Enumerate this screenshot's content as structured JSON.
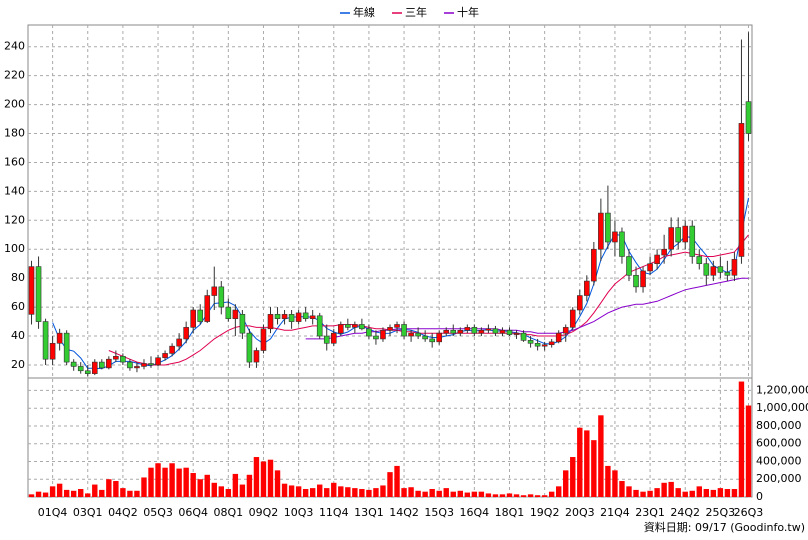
{
  "chart_data": [
    {
      "type": "candlestick",
      "categories": [
        null,
        null,
        null,
        "01Q4",
        null,
        null,
        null,
        null,
        "03Q1",
        null,
        null,
        null,
        null,
        "04Q2",
        null,
        null,
        null,
        null,
        "05Q3",
        null,
        null,
        null,
        null,
        "06Q4",
        null,
        null,
        null,
        null,
        "08Q1",
        null,
        null,
        null,
        null,
        "09Q2",
        null,
        null,
        null,
        null,
        "10Q3",
        null,
        null,
        null,
        null,
        "11Q4",
        null,
        null,
        null,
        null,
        "13Q1",
        null,
        null,
        null,
        null,
        "14Q2",
        null,
        null,
        null,
        null,
        "15Q3",
        null,
        null,
        null,
        null,
        "16Q4",
        null,
        null,
        null,
        null,
        "18Q1",
        null,
        null,
        null,
        null,
        "19Q2",
        null,
        null,
        null,
        null,
        "20Q3",
        null,
        null,
        null,
        null,
        "21Q4",
        null,
        null,
        null,
        null,
        "23Q1",
        null,
        null,
        null,
        null,
        "24Q2",
        null,
        null,
        null,
        null,
        "25Q3",
        null,
        null,
        null,
        "26Q3"
      ],
      "open": [
        55,
        88,
        50,
        24,
        35,
        42,
        22,
        19,
        16,
        14,
        22,
        18,
        24,
        26,
        22,
        18,
        19,
        21,
        20,
        25,
        28,
        33,
        38,
        46,
        58,
        50,
        68,
        74,
        60,
        52,
        55,
        42,
        22,
        30,
        45,
        55,
        52,
        55,
        50,
        56,
        52,
        54,
        40,
        35,
        42,
        48,
        46,
        48,
        45,
        40,
        38,
        44,
        46,
        48,
        40,
        42,
        40,
        38,
        36,
        42,
        44,
        42,
        44,
        46,
        42,
        44,
        45,
        42,
        44,
        41,
        42,
        37,
        35,
        33,
        34,
        36,
        42,
        46,
        58,
        68,
        78,
        100,
        125,
        105,
        112,
        95,
        82,
        74,
        85,
        90,
        96,
        100,
        115,
        105,
        116,
        95,
        90,
        82,
        88,
        84,
        82,
        95,
        202
      ],
      "high": [
        92,
        95,
        52,
        40,
        45,
        44,
        24,
        22,
        20,
        24,
        24,
        26,
        30,
        28,
        24,
        22,
        24,
        26,
        27,
        30,
        35,
        42,
        50,
        60,
        62,
        72,
        88,
        78,
        66,
        62,
        58,
        45,
        32,
        48,
        60,
        60,
        58,
        58,
        58,
        60,
        58,
        56,
        48,
        45,
        50,
        52,
        50,
        52,
        48,
        44,
        46,
        48,
        50,
        50,
        44,
        46,
        44,
        42,
        44,
        46,
        48,
        46,
        48,
        48,
        46,
        48,
        47,
        46,
        46,
        44,
        44,
        40,
        38,
        36,
        38,
        44,
        48,
        60,
        72,
        82,
        105,
        135,
        144,
        120,
        115,
        100,
        88,
        88,
        95,
        100,
        110,
        122,
        122,
        120,
        120,
        100,
        94,
        92,
        95,
        92,
        98,
        245,
        250
      ],
      "low": [
        48,
        45,
        20,
        20,
        30,
        20,
        16,
        14,
        12,
        13,
        17,
        17,
        22,
        20,
        16,
        15,
        17,
        18,
        19,
        23,
        26,
        30,
        35,
        42,
        48,
        49,
        58,
        55,
        50,
        40,
        38,
        18,
        18,
        28,
        42,
        48,
        48,
        45,
        48,
        50,
        48,
        38,
        30,
        33,
        40,
        44,
        42,
        44,
        38,
        34,
        36,
        40,
        42,
        38,
        36,
        38,
        36,
        32,
        34,
        40,
        40,
        40,
        42,
        40,
        40,
        42,
        40,
        40,
        40,
        38,
        36,
        32,
        30,
        30,
        32,
        35,
        36,
        44,
        55,
        64,
        75,
        92,
        100,
        95,
        90,
        78,
        70,
        70,
        82,
        86,
        90,
        95,
        100,
        100,
        90,
        86,
        75,
        78,
        80,
        78,
        78,
        90,
        175
      ],
      "close": [
        88,
        50,
        24,
        35,
        42,
        22,
        19,
        16,
        14,
        22,
        18,
        24,
        26,
        22,
        18,
        19,
        21,
        20,
        25,
        28,
        33,
        38,
        46,
        58,
        50,
        68,
        74,
        60,
        52,
        58,
        42,
        22,
        30,
        45,
        55,
        52,
        55,
        50,
        56,
        52,
        54,
        40,
        35,
        42,
        48,
        46,
        48,
        45,
        40,
        38,
        44,
        46,
        48,
        40,
        42,
        40,
        38,
        36,
        42,
        44,
        42,
        44,
        46,
        42,
        44,
        45,
        42,
        44,
        41,
        42,
        37,
        35,
        33,
        34,
        36,
        42,
        46,
        58,
        68,
        78,
        100,
        125,
        105,
        112,
        95,
        82,
        74,
        85,
        90,
        96,
        100,
        115,
        105,
        116,
        95,
        90,
        82,
        88,
        84,
        82,
        93,
        187,
        180
      ],
      "up_color": "#ff0000",
      "down_color": "#33cc33",
      "series": [
        {
          "name": "年線",
          "color": "#0055dd",
          "values": [
            null,
            null,
            null,
            49.3,
            37.8,
            30.8,
            29.5,
            24.8,
            17.8,
            17.8,
            17.5,
            19.5,
            22.5,
            22.5,
            22.5,
            21.3,
            20,
            19.5,
            21.3,
            23.5,
            26.5,
            31,
            36.3,
            43.8,
            48,
            55.5,
            62.5,
            63,
            63.5,
            61,
            53,
            43.5,
            38,
            34.8,
            38,
            45.5,
            51.8,
            53,
            53.3,
            53.3,
            53,
            50.5,
            45.3,
            42.8,
            41.3,
            42.8,
            46,
            46.8,
            44.8,
            42.8,
            41.8,
            42,
            44,
            44.5,
            44,
            42.5,
            40,
            39,
            39,
            40,
            41,
            43,
            44,
            43.5,
            44,
            44.3,
            43.3,
            43.8,
            43,
            42.3,
            41,
            38.8,
            36.8,
            34.8,
            34.5,
            36.3,
            39.5,
            45.5,
            53.5,
            62.5,
            76,
            92.8,
            102,
            110.5,
            109.3,
            98.5,
            90.8,
            84,
            82.8,
            86.3,
            92.8,
            100.3,
            104,
            109,
            107.8,
            101.5,
            95.8,
            88.8,
            86,
            84,
            86.8,
            111.5,
            135.5
          ]
        },
        {
          "name": "三年",
          "color": "#e00050",
          "values": [
            null,
            null,
            null,
            null,
            null,
            null,
            null,
            null,
            null,
            null,
            null,
            30,
            28,
            26,
            24,
            22,
            21,
            20,
            20,
            20,
            21,
            22,
            24,
            27,
            30,
            34,
            38,
            41,
            44,
            46,
            47,
            47,
            46,
            46,
            46,
            45,
            44,
            44,
            45,
            46,
            47,
            47,
            47,
            47,
            48,
            48,
            48,
            47,
            46,
            45,
            45,
            44,
            44,
            43,
            43,
            42,
            42,
            42,
            42,
            42,
            42,
            42,
            42,
            42,
            42,
            42,
            42,
            42,
            42,
            42,
            41,
            41,
            40,
            40,
            40,
            40,
            41,
            43,
            46,
            50,
            56,
            63,
            70,
            76,
            80,
            84,
            86,
            88,
            90,
            92,
            95,
            96,
            97,
            98,
            97,
            96,
            95,
            95,
            96,
            97,
            98,
            104,
            110
          ]
        },
        {
          "name": "十年",
          "color": "#8800cc",
          "values": [
            null,
            null,
            null,
            null,
            null,
            null,
            null,
            null,
            null,
            null,
            null,
            null,
            null,
            null,
            null,
            null,
            null,
            null,
            null,
            null,
            null,
            null,
            null,
            null,
            null,
            null,
            null,
            null,
            null,
            null,
            null,
            null,
            null,
            null,
            null,
            null,
            null,
            null,
            null,
            38,
            38,
            38,
            38,
            39,
            40,
            41,
            42,
            42,
            43,
            43,
            44,
            44,
            45,
            45,
            45,
            45,
            45,
            45,
            45,
            45,
            45,
            45,
            45,
            45,
            45,
            45,
            45,
            44,
            44,
            44,
            43,
            43,
            42,
            42,
            42,
            42,
            43,
            44,
            46,
            48,
            50,
            53,
            56,
            58,
            60,
            61,
            62,
            62,
            63,
            64,
            66,
            68,
            70,
            72,
            73,
            74,
            75,
            76,
            77,
            78,
            79,
            80,
            80
          ]
        }
      ],
      "ylim": [
        11,
        255
      ],
      "yticks": [
        20,
        40,
        60,
        80,
        100,
        120,
        140,
        160,
        180,
        200,
        220,
        240
      ],
      "grid": true,
      "legend": "top"
    },
    {
      "type": "bar",
      "color": "#ff0000",
      "values": [
        30000,
        60000,
        50000,
        120000,
        150000,
        80000,
        70000,
        90000,
        40000,
        140000,
        80000,
        200000,
        180000,
        100000,
        70000,
        70000,
        220000,
        330000,
        380000,
        330000,
        380000,
        320000,
        330000,
        270000,
        200000,
        250000,
        160000,
        120000,
        90000,
        260000,
        140000,
        250000,
        450000,
        400000,
        420000,
        300000,
        150000,
        130000,
        120000,
        90000,
        100000,
        140000,
        100000,
        160000,
        120000,
        110000,
        100000,
        90000,
        80000,
        100000,
        130000,
        280000,
        350000,
        100000,
        110000,
        70000,
        60000,
        90000,
        70000,
        100000,
        60000,
        70000,
        50000,
        60000,
        60000,
        40000,
        30000,
        30000,
        40000,
        30000,
        20000,
        30000,
        20000,
        20000,
        60000,
        120000,
        300000,
        450000,
        780000,
        750000,
        640000,
        920000,
        350000,
        300000,
        180000,
        120000,
        80000,
        60000,
        70000,
        100000,
        160000,
        170000,
        100000,
        60000,
        70000,
        120000,
        90000,
        80000,
        100000,
        90000,
        90000,
        1300000,
        1030000
      ],
      "ylim": [
        0,
        1340000
      ],
      "yticks": [
        {
          "value": 0,
          "label": "0"
        },
        {
          "value": 200000,
          "label": "200,000"
        },
        {
          "value": 400000,
          "label": "400,000"
        },
        {
          "value": 600000,
          "label": "600,000"
        },
        {
          "value": 800000,
          "label": "800,000"
        },
        {
          "value": 1000000,
          "label": "1,000,000"
        },
        {
          "value": 1200000,
          "label": "1,200,000"
        }
      ],
      "grid": true
    }
  ],
  "footnote": "資料日期: 09/17 (Goodinfo.tw)"
}
